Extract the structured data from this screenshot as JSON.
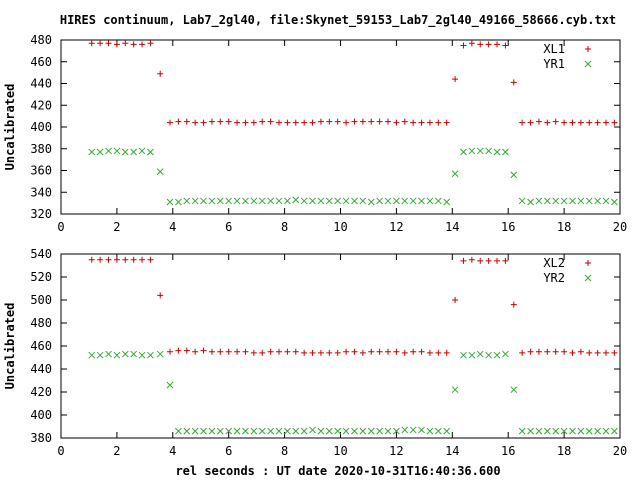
{
  "figure": {
    "title": "HIRES continuum, Lab7_2gl40, file:Skynet_59153_Lab7_2gl40_49166_58666.cyb.txt",
    "xlabel": "rel seconds : UT date 2020-10-31T16:40:36.600"
  },
  "colors": {
    "series1": "#cc0000",
    "series2": "#33aa33"
  },
  "chart_data": [
    {
      "type": "scatter",
      "ylabel": "Uncalibrated",
      "xlim": [
        0,
        20
      ],
      "ylim": [
        320,
        480
      ],
      "xticks": [
        0,
        2,
        4,
        6,
        8,
        10,
        12,
        14,
        16,
        18,
        20
      ],
      "yticks": [
        320,
        340,
        360,
        380,
        400,
        420,
        440,
        460,
        480
      ],
      "legend_position": "top-right",
      "series": [
        {
          "name": "XL1",
          "marker": "plus",
          "x": [
            1.1,
            1.4,
            1.7,
            2.0,
            2.3,
            2.6,
            2.9,
            3.2,
            3.55,
            3.9,
            4.2,
            4.5,
            4.8,
            5.1,
            5.4,
            5.7,
            6.0,
            6.3,
            6.6,
            6.9,
            7.2,
            7.5,
            7.8,
            8.1,
            8.4,
            8.7,
            9.0,
            9.3,
            9.6,
            9.9,
            10.2,
            10.5,
            10.8,
            11.1,
            11.4,
            11.7,
            12.0,
            12.3,
            12.6,
            12.9,
            13.2,
            13.5,
            13.8,
            14.1,
            14.4,
            14.7,
            15.0,
            15.3,
            15.6,
            15.9,
            16.2,
            16.5,
            16.8,
            17.1,
            17.4,
            17.7,
            18.0,
            18.3,
            18.6,
            18.9,
            19.2,
            19.5,
            19.8
          ],
          "y": [
            477,
            477,
            477,
            476,
            477,
            476,
            476,
            477,
            449,
            404,
            405,
            405,
            404,
            404,
            405,
            405,
            405,
            404,
            404,
            404,
            405,
            405,
            404,
            404,
            404,
            404,
            404,
            405,
            405,
            405,
            404,
            405,
            405,
            405,
            405,
            405,
            404,
            405,
            404,
            404,
            404,
            404,
            404,
            444,
            475,
            477,
            476,
            476,
            476,
            475,
            441,
            404,
            404,
            405,
            404,
            405,
            404,
            404,
            404,
            404,
            404,
            404,
            404
          ]
        },
        {
          "name": "YR1",
          "marker": "cross",
          "x": [
            1.1,
            1.4,
            1.7,
            2.0,
            2.3,
            2.6,
            2.9,
            3.2,
            3.55,
            3.9,
            4.2,
            4.5,
            4.8,
            5.1,
            5.4,
            5.7,
            6.0,
            6.3,
            6.6,
            6.9,
            7.2,
            7.5,
            7.8,
            8.1,
            8.4,
            8.7,
            9.0,
            9.3,
            9.6,
            9.9,
            10.2,
            10.5,
            10.8,
            11.1,
            11.4,
            11.7,
            12.0,
            12.3,
            12.6,
            12.9,
            13.2,
            13.5,
            13.8,
            14.1,
            14.4,
            14.7,
            15.0,
            15.3,
            15.6,
            15.9,
            16.2,
            16.5,
            16.8,
            17.1,
            17.4,
            17.7,
            18.0,
            18.3,
            18.6,
            18.9,
            19.2,
            19.5,
            19.8
          ],
          "y": [
            377,
            377,
            378,
            378,
            377,
            377,
            378,
            377,
            359,
            331,
            331,
            332,
            332,
            332,
            332,
            332,
            332,
            332,
            332,
            332,
            332,
            332,
            332,
            332,
            333,
            332,
            332,
            332,
            332,
            332,
            332,
            332,
            332,
            331,
            332,
            332,
            332,
            332,
            332,
            332,
            332,
            332,
            331,
            357,
            377,
            378,
            378,
            378,
            377,
            377,
            356,
            332,
            331,
            332,
            332,
            332,
            332,
            332,
            332,
            332,
            332,
            332,
            331
          ]
        }
      ]
    },
    {
      "type": "scatter",
      "ylabel": "Uncalibrated",
      "xlim": [
        0,
        20
      ],
      "ylim": [
        380,
        540
      ],
      "xticks": [
        0,
        2,
        4,
        6,
        8,
        10,
        12,
        14,
        16,
        18,
        20
      ],
      "yticks": [
        380,
        400,
        420,
        440,
        460,
        480,
        500,
        520,
        540
      ],
      "legend_position": "top-right",
      "series": [
        {
          "name": "XL2",
          "marker": "plus",
          "x": [
            1.1,
            1.4,
            1.7,
            2.0,
            2.3,
            2.6,
            2.9,
            3.2,
            3.55,
            3.9,
            4.2,
            4.5,
            4.8,
            5.1,
            5.4,
            5.7,
            6.0,
            6.3,
            6.6,
            6.9,
            7.2,
            7.5,
            7.8,
            8.1,
            8.4,
            8.7,
            9.0,
            9.3,
            9.6,
            9.9,
            10.2,
            10.5,
            10.8,
            11.1,
            11.4,
            11.7,
            12.0,
            12.3,
            12.6,
            12.9,
            13.2,
            13.5,
            13.8,
            14.1,
            14.4,
            14.7,
            15.0,
            15.3,
            15.6,
            15.9,
            16.2,
            16.5,
            16.8,
            17.1,
            17.4,
            17.7,
            18.0,
            18.3,
            18.6,
            18.9,
            19.2,
            19.5,
            19.8
          ],
          "y": [
            535,
            535,
            535,
            535,
            535,
            535,
            535,
            535,
            504,
            455,
            456,
            456,
            455,
            456,
            455,
            455,
            455,
            455,
            455,
            454,
            454,
            455,
            455,
            455,
            455,
            454,
            454,
            454,
            454,
            454,
            455,
            455,
            454,
            455,
            455,
            455,
            455,
            454,
            455,
            455,
            454,
            454,
            454,
            500,
            534,
            535,
            534,
            534,
            534,
            534,
            496,
            454,
            455,
            455,
            455,
            455,
            455,
            454,
            455,
            454,
            454,
            454,
            454
          ]
        },
        {
          "name": "YR2",
          "marker": "cross",
          "x": [
            1.1,
            1.4,
            1.7,
            2.0,
            2.3,
            2.6,
            2.9,
            3.2,
            3.55,
            3.9,
            4.2,
            4.5,
            4.8,
            5.1,
            5.4,
            5.7,
            6.0,
            6.3,
            6.6,
            6.9,
            7.2,
            7.5,
            7.8,
            8.1,
            8.4,
            8.7,
            9.0,
            9.3,
            9.6,
            9.9,
            10.2,
            10.5,
            10.8,
            11.1,
            11.4,
            11.7,
            12.0,
            12.3,
            12.6,
            12.9,
            13.2,
            13.5,
            13.8,
            14.1,
            14.4,
            14.7,
            15.0,
            15.3,
            15.6,
            15.9,
            16.2,
            16.5,
            16.8,
            17.1,
            17.4,
            17.7,
            18.0,
            18.3,
            18.6,
            18.9,
            19.2,
            19.5,
            19.8
          ],
          "y": [
            452,
            452,
            453,
            452,
            453,
            453,
            452,
            452,
            453,
            426,
            386,
            386,
            386,
            386,
            386,
            386,
            386,
            386,
            386,
            386,
            386,
            386,
            386,
            386,
            386,
            386,
            387,
            386,
            386,
            386,
            386,
            386,
            386,
            386,
            386,
            386,
            386,
            387,
            387,
            387,
            386,
            386,
            386,
            422,
            452,
            452,
            453,
            452,
            452,
            453,
            422,
            386,
            386,
            386,
            386,
            386,
            386,
            386,
            386,
            386,
            386,
            386,
            386
          ]
        }
      ]
    }
  ]
}
